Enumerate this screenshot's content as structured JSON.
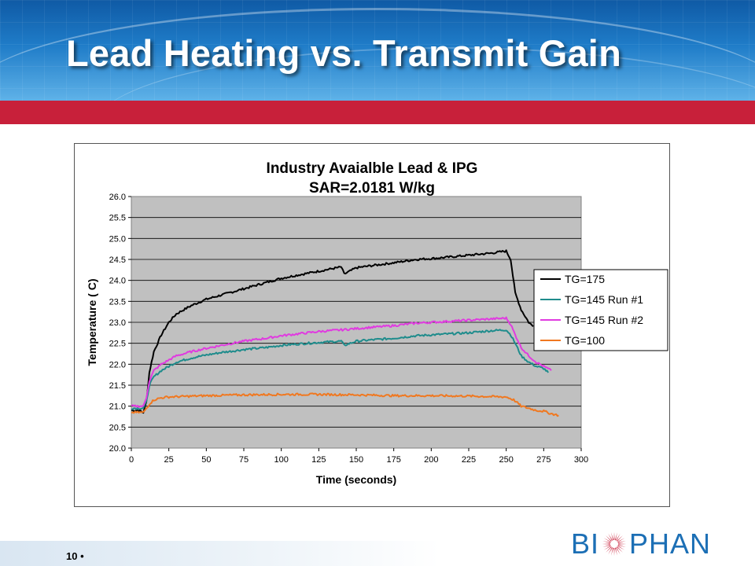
{
  "slide": {
    "title": "Lead Heating vs. Transmit Gain",
    "page_number": "10",
    "page_bullet": "•",
    "logo": {
      "left": "BI",
      "right": "PHAN",
      "mark": "sun-logo-icon"
    }
  },
  "colors": {
    "header_blue": "#1f7cc8",
    "red_band": "#c8203a",
    "plot_background": "#c0c0c0",
    "logo_blue": "#1c6fb5",
    "logo_red": "#c8203a"
  },
  "chart_data": {
    "type": "line",
    "title": "Industry Avaialble Lead & IPG",
    "subtitle": "SAR=2.0181 W/kg",
    "xlabel": "Time (seconds)",
    "ylabel": "Temperature ( C)",
    "xlim": [
      0,
      300
    ],
    "ylim": [
      20.0,
      26.0
    ],
    "xticks": [
      0,
      25,
      50,
      75,
      100,
      125,
      150,
      175,
      200,
      225,
      250,
      275,
      300
    ],
    "yticks": [
      "20.0",
      "20.5",
      "21.0",
      "21.5",
      "22.0",
      "22.5",
      "23.0",
      "23.5",
      "24.0",
      "24.5",
      "25.0",
      "25.5",
      "26.0"
    ],
    "grid": "horizontal",
    "legend_position": "right",
    "series": [
      {
        "name": "TG=175",
        "color": "#000000",
        "x": [
          0,
          5,
          8,
          10,
          12,
          15,
          20,
          25,
          30,
          40,
          50,
          60,
          75,
          90,
          100,
          110,
          125,
          140,
          142,
          150,
          160,
          175,
          190,
          200,
          210,
          225,
          240,
          250,
          253,
          256,
          260,
          265,
          268
        ],
        "y": [
          20.9,
          20.9,
          20.85,
          21.1,
          21.8,
          22.3,
          22.7,
          23.0,
          23.2,
          23.4,
          23.55,
          23.65,
          23.8,
          23.95,
          24.05,
          24.12,
          24.22,
          24.32,
          24.15,
          24.3,
          24.35,
          24.42,
          24.5,
          24.52,
          24.55,
          24.6,
          24.65,
          24.7,
          24.5,
          23.7,
          23.3,
          23.0,
          22.9
        ]
      },
      {
        "name": "TG=145 Run #1",
        "color": "#1f8c8c",
        "x": [
          0,
          5,
          8,
          10,
          12,
          15,
          20,
          25,
          30,
          40,
          50,
          60,
          75,
          90,
          100,
          110,
          125,
          140,
          142,
          150,
          160,
          175,
          190,
          200,
          210,
          225,
          240,
          250,
          253,
          256,
          260,
          265,
          270,
          275,
          278
        ],
        "y": [
          20.95,
          20.95,
          20.95,
          21.1,
          21.5,
          21.7,
          21.85,
          21.95,
          22.05,
          22.15,
          22.22,
          22.28,
          22.35,
          22.4,
          22.45,
          22.48,
          22.52,
          22.55,
          22.45,
          22.55,
          22.58,
          22.62,
          22.68,
          22.7,
          22.72,
          22.75,
          22.8,
          22.82,
          22.7,
          22.5,
          22.2,
          22.05,
          21.95,
          21.9,
          21.8
        ]
      },
      {
        "name": "TG=145 Run #2",
        "color": "#e03be0",
        "x": [
          0,
          5,
          8,
          10,
          12,
          15,
          20,
          25,
          30,
          40,
          50,
          60,
          75,
          90,
          100,
          110,
          125,
          140,
          150,
          160,
          175,
          190,
          200,
          210,
          225,
          240,
          250,
          253,
          256,
          260,
          265,
          270,
          275,
          280
        ],
        "y": [
          21.0,
          21.0,
          21.0,
          21.2,
          21.6,
          21.85,
          22.0,
          22.1,
          22.2,
          22.3,
          22.38,
          22.45,
          22.55,
          22.62,
          22.68,
          22.72,
          22.78,
          22.82,
          22.85,
          22.88,
          22.92,
          22.98,
          23.0,
          23.02,
          23.05,
          23.08,
          23.1,
          22.95,
          22.7,
          22.4,
          22.2,
          22.05,
          21.95,
          21.85
        ]
      },
      {
        "name": "TG=100",
        "color": "#f07820",
        "x": [
          0,
          5,
          8,
          10,
          12,
          15,
          20,
          25,
          50,
          75,
          100,
          125,
          150,
          175,
          200,
          225,
          250,
          255,
          260,
          265,
          270,
          275,
          280,
          285
        ],
        "y": [
          20.85,
          20.85,
          20.85,
          20.95,
          21.05,
          21.15,
          21.2,
          21.22,
          21.25,
          21.27,
          21.28,
          21.28,
          21.27,
          21.25,
          21.25,
          21.24,
          21.22,
          21.15,
          21.0,
          20.95,
          20.9,
          20.88,
          20.82,
          20.78
        ]
      }
    ]
  }
}
